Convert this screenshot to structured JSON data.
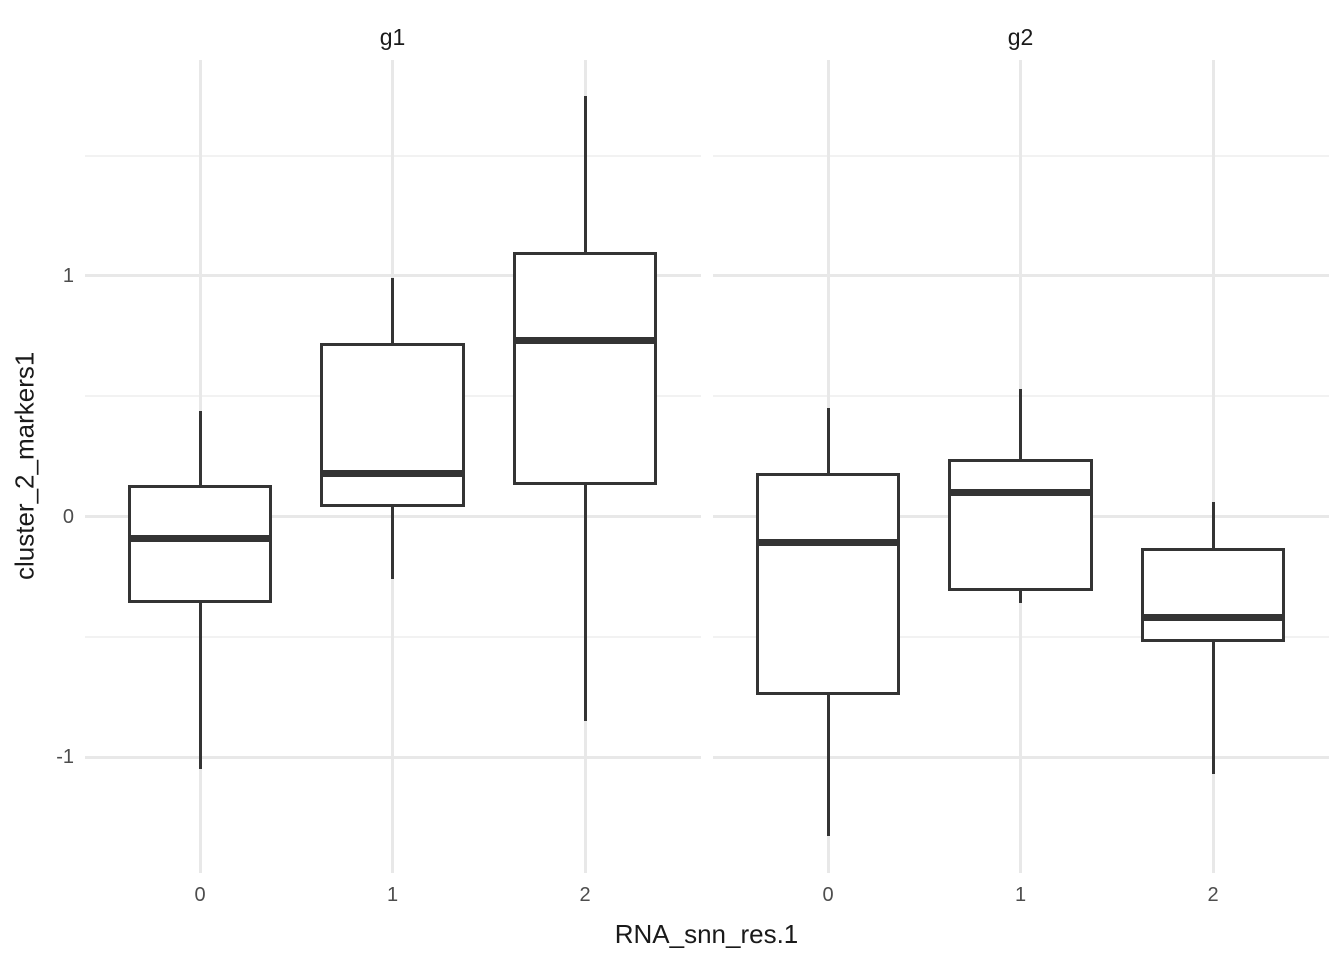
{
  "chart_data": {
    "type": "box",
    "title": "",
    "xlabel": "RNA_snn_res.1",
    "ylabel": "cluster_2_markers1",
    "categories": [
      "0",
      "1",
      "2"
    ],
    "ylim": [
      -1.482,
      1.898
    ],
    "y_major_ticks": [
      {
        "value": 1,
        "label": "1"
      },
      {
        "value": 0,
        "label": "0"
      },
      {
        "value": -1,
        "label": "-1"
      }
    ],
    "y_minor_ticks": [
      1.5,
      0.5,
      -0.5
    ],
    "grid": "major and minor horizontal plus vertical category gridlines, no axis lines, no ticks (theme_minimal style)",
    "legend_position": "none",
    "facets": [
      {
        "label": "g1",
        "boxes": [
          {
            "category": "0",
            "whisker_low": -1.05,
            "q1": -0.36,
            "median": -0.09,
            "q3": 0.13,
            "whisker_high": 0.44
          },
          {
            "category": "1",
            "whisker_low": -0.26,
            "q1": 0.04,
            "median": 0.18,
            "q3": 0.72,
            "whisker_high": 0.99
          },
          {
            "category": "2",
            "whisker_low": -0.85,
            "q1": 0.13,
            "median": 0.73,
            "q3": 1.1,
            "whisker_high": 1.75
          }
        ]
      },
      {
        "label": "g2",
        "boxes": [
          {
            "category": "0",
            "whisker_low": -1.33,
            "q1": -0.74,
            "median": -0.11,
            "q3": 0.18,
            "whisker_high": 0.45
          },
          {
            "category": "1",
            "whisker_low": -0.36,
            "q1": -0.31,
            "median": 0.1,
            "q3": 0.24,
            "whisker_high": 0.53
          },
          {
            "category": "2",
            "whisker_low": -1.07,
            "q1": -0.52,
            "median": -0.42,
            "q3": -0.13,
            "whisker_high": 0.06
          }
        ]
      }
    ],
    "colors": {
      "box_stroke": "#343434",
      "box_fill": "#ffffff",
      "grid_major": "#e8e8e8",
      "grid_minor": "#f2f2f2",
      "tick_label": "#4d4d4d",
      "title_text": "#1a1a1a",
      "background": "#ffffff"
    }
  }
}
